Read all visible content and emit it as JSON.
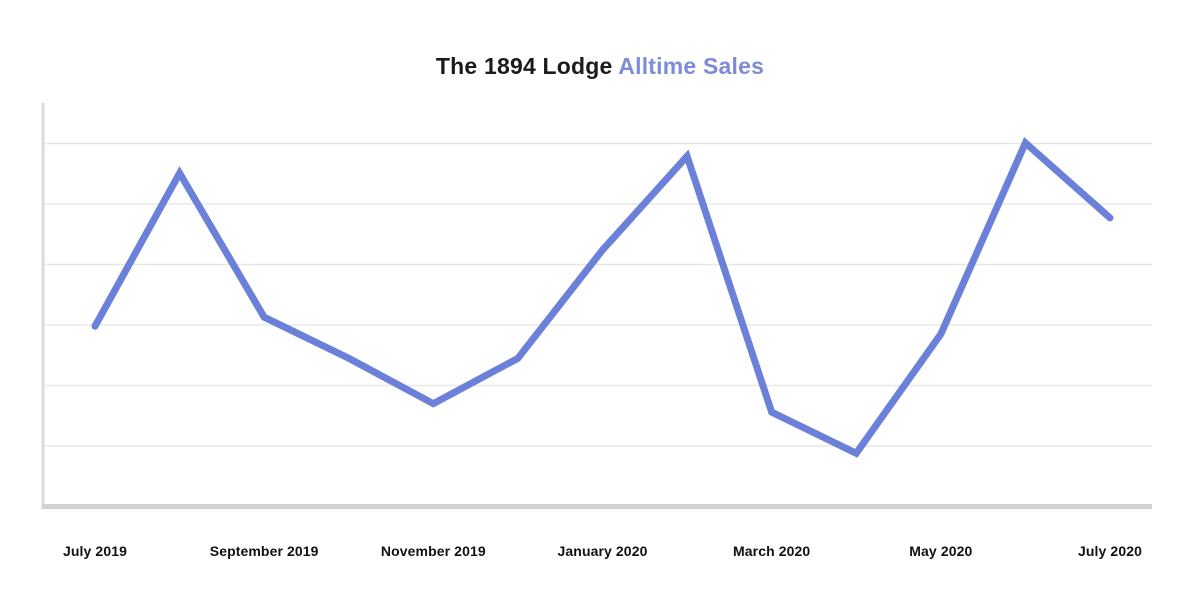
{
  "title": {
    "main": "The 1894 Lodge",
    "accent": "Alltime Sales"
  },
  "colors": {
    "title_main": "#1b1b1b",
    "title_accent": "#7d8cd8",
    "line": "#6b80d8",
    "gridline": "#e8e8e8",
    "y_axis": "#dbdbdb",
    "x_axis": "#d2d2d2",
    "tick_label": "#111111",
    "background": "#ffffff"
  },
  "chart_data": {
    "type": "line",
    "title": "The 1894 Lodge Alltime Sales",
    "series_name": "Alltime Sales",
    "x": [
      "July 2019",
      "August 2019",
      "September 2019",
      "October 2019",
      "November 2019",
      "December 2019",
      "January 2020",
      "February 2020",
      "March 2020",
      "April 2020",
      "May 2020",
      "June 2020",
      "July 2020"
    ],
    "values": [
      2.98,
      5.51,
      3.13,
      2.45,
      1.7,
      2.45,
      4.24,
      5.79,
      1.56,
      0.88,
      2.85,
      6.01,
      4.77
    ],
    "y_unit": "gridline units (y-axis shows no numeric labels; 1 unit = one gridline step above the baseline)",
    "x_tick_labels": [
      "July 2019",
      "September 2019",
      "November 2019",
      "January 2020",
      "March 2020",
      "May 2020",
      "July 2020"
    ],
    "x_tick_indices": [
      0,
      2,
      4,
      6,
      8,
      10,
      12
    ],
    "xlabel": "",
    "ylabel": "",
    "ylim": [
      0,
      6.67
    ],
    "grid": "horizontal only",
    "legend": "none"
  }
}
